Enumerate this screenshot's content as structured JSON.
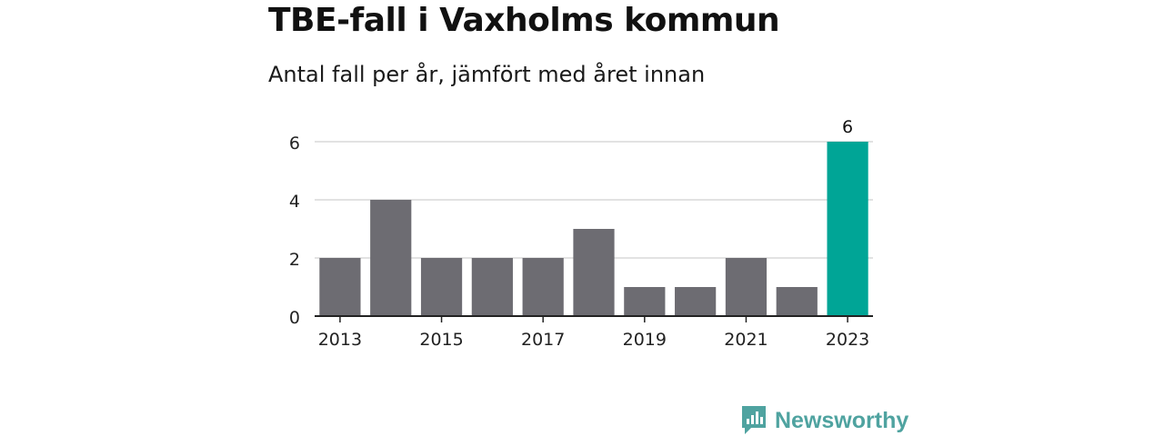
{
  "header": {
    "title": "TBE-fall i Vaxholms kommun",
    "subtitle": "Antal fall per år, jämfört med året innan"
  },
  "brand": {
    "name": "Newsworthy",
    "icon": "newsworthy-logo-icon",
    "color": "#4fa3a0"
  },
  "chart_data": {
    "type": "bar",
    "categories": [
      "2013",
      "2014",
      "2015",
      "2016",
      "2017",
      "2018",
      "2019",
      "2020",
      "2021",
      "2022",
      "2023"
    ],
    "values": [
      2,
      4,
      2,
      2,
      2,
      3,
      1,
      1,
      2,
      1,
      6
    ],
    "x_tick_labels": [
      "2013",
      "2015",
      "2017",
      "2019",
      "2021",
      "2023"
    ],
    "y_ticks": [
      0,
      2,
      4,
      6
    ],
    "ylim": [
      0,
      6
    ],
    "grid": true,
    "highlight": {
      "category": "2023",
      "label": "6"
    },
    "colors": {
      "bar": "#6d6c72",
      "highlight": "#00a596",
      "grid": "#d9d9d9",
      "axis": "#222222"
    }
  }
}
